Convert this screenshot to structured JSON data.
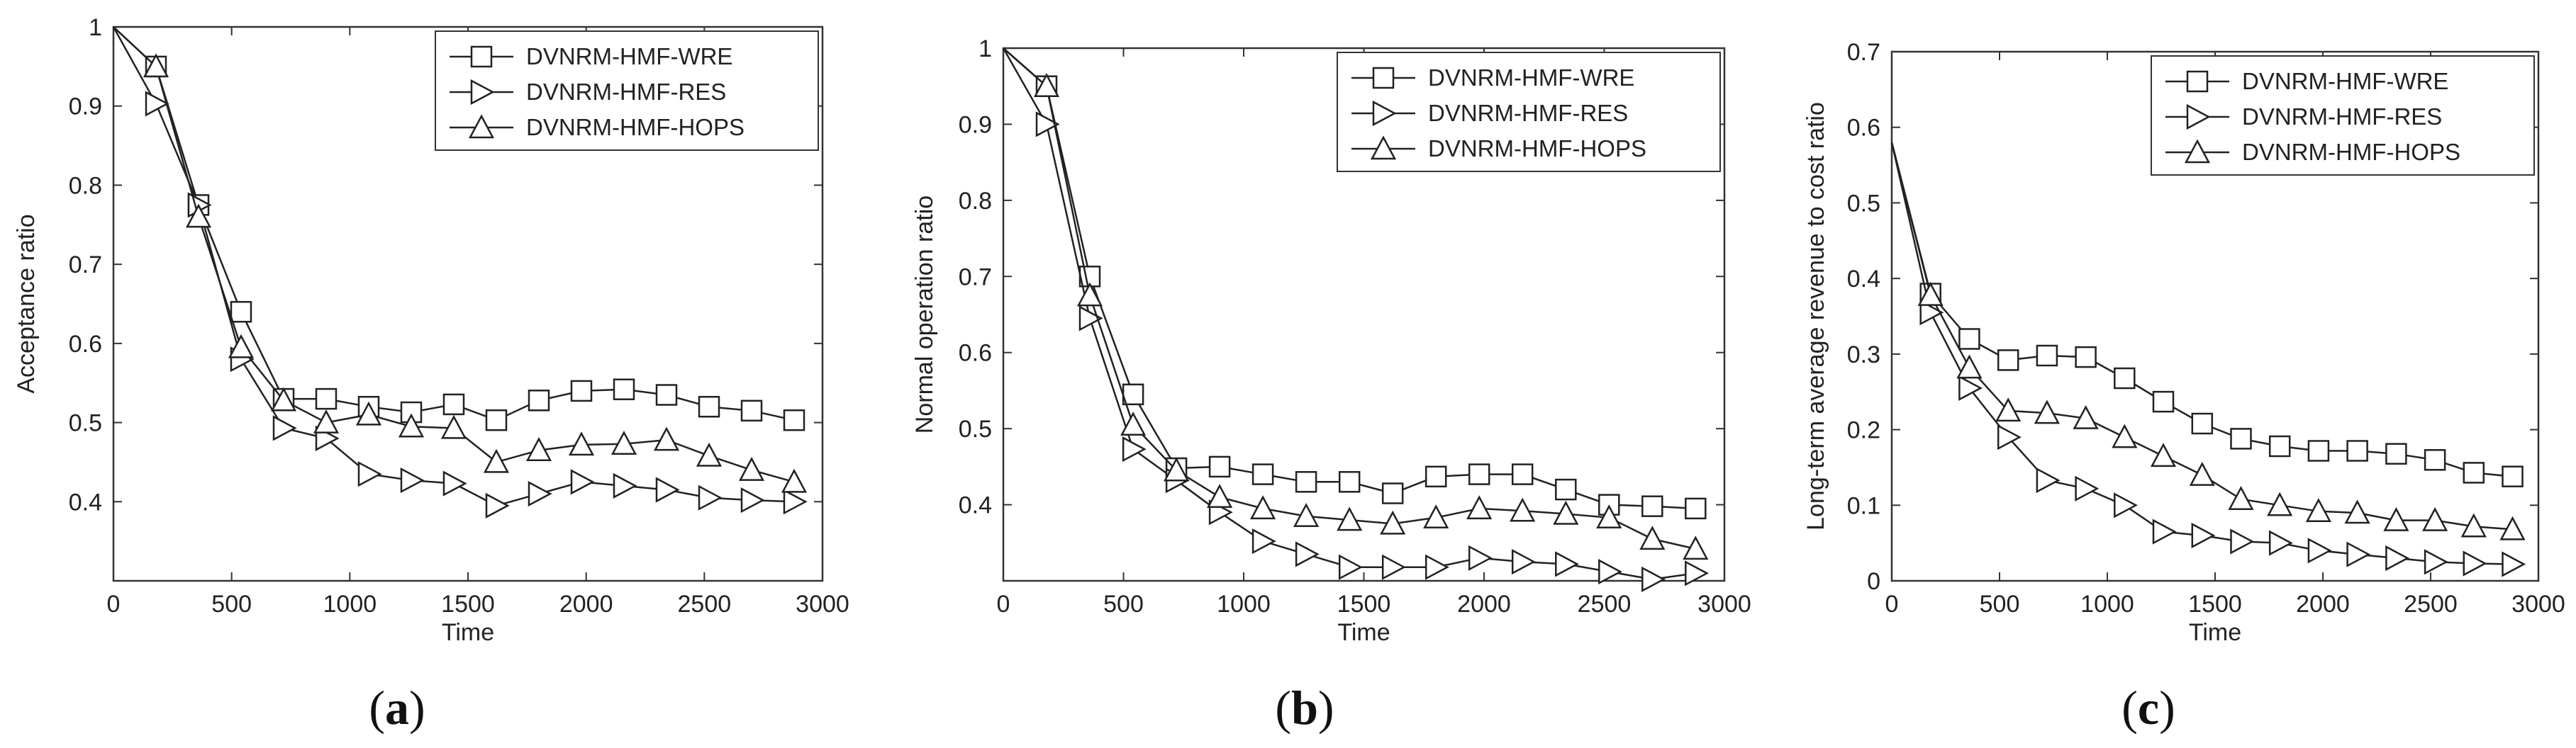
{
  "chart_data": [
    {
      "type": "line",
      "caption_letter": "a",
      "xlabel": "Time",
      "ylabel": "Acceptance ratio",
      "xlim": [
        0,
        3000
      ],
      "ylim": [
        0.3,
        1.0
      ],
      "xticks": [
        0,
        500,
        1000,
        1500,
        2000,
        2500,
        3000
      ],
      "xtick_labels": [
        "0",
        "500",
        "1000",
        "1500",
        "2000",
        "2500",
        "3000"
      ],
      "yticks": [
        0.4,
        0.5,
        0.6,
        0.7,
        0.8,
        0.9,
        1.0
      ],
      "ytick_labels": [
        "0.4",
        "0.5",
        "0.6",
        "0.7",
        "0.8",
        "0.9",
        "1"
      ],
      "legend_position": "top-right",
      "x": [
        0,
        180,
        360,
        540,
        720,
        900,
        1080,
        1260,
        1440,
        1620,
        1800,
        1980,
        2160,
        2340,
        2520,
        2700,
        2880
      ],
      "series": [
        {
          "name": "DVNRM-HMF-WRE",
          "marker": "square",
          "values": [
            1.0,
            0.95,
            0.775,
            0.64,
            0.53,
            0.53,
            0.52,
            0.513,
            0.523,
            0.503,
            0.528,
            0.54,
            0.542,
            0.535,
            0.52,
            0.515,
            0.503
          ]
        },
        {
          "name": "DVNRM-HMF-RES",
          "marker": "triangle-right",
          "values": [
            1.0,
            0.903,
            0.775,
            0.58,
            0.493,
            0.48,
            0.435,
            0.427,
            0.423,
            0.395,
            0.41,
            0.425,
            0.42,
            0.415,
            0.405,
            0.402,
            0.4
          ]
        },
        {
          "name": "DVNRM-HMF-HOPS",
          "marker": "triangle-up",
          "values": [
            1.0,
            0.95,
            0.76,
            0.595,
            0.528,
            0.5,
            0.51,
            0.495,
            0.493,
            0.45,
            0.465,
            0.472,
            0.473,
            0.478,
            0.458,
            0.44,
            0.425
          ]
        }
      ]
    },
    {
      "type": "line",
      "caption_letter": "b",
      "xlabel": "Time",
      "ylabel": "Normal operation ratio",
      "xlim": [
        0,
        3000
      ],
      "ylim": [
        0.3,
        1.0
      ],
      "xticks": [
        0,
        500,
        1000,
        1500,
        2000,
        2500,
        3000
      ],
      "xtick_labels": [
        "0",
        "500",
        "1000",
        "1500",
        "2000",
        "2500",
        "3000"
      ],
      "yticks": [
        0.4,
        0.5,
        0.6,
        0.7,
        0.8,
        0.9,
        1.0
      ],
      "ytick_labels": [
        "0.4",
        "0.5",
        "0.6",
        "0.7",
        "0.8",
        "0.9",
        "1"
      ],
      "legend_position": "top-right",
      "x": [
        0,
        180,
        360,
        540,
        720,
        900,
        1080,
        1260,
        1440,
        1620,
        1800,
        1980,
        2160,
        2340,
        2520,
        2700,
        2880
      ],
      "series": [
        {
          "name": "DVNRM-HMF-WRE",
          "marker": "square",
          "values": [
            1.0,
            0.95,
            0.7,
            0.545,
            0.448,
            0.45,
            0.44,
            0.43,
            0.43,
            0.415,
            0.437,
            0.44,
            0.44,
            0.42,
            0.4,
            0.398,
            0.395
          ]
        },
        {
          "name": "DVNRM-HMF-RES",
          "marker": "triangle-right",
          "values": [
            1.0,
            0.9,
            0.645,
            0.473,
            0.432,
            0.39,
            0.352,
            0.335,
            0.318,
            0.318,
            0.318,
            0.33,
            0.325,
            0.322,
            0.312,
            0.302,
            0.31
          ]
        },
        {
          "name": "DVNRM-HMF-HOPS",
          "marker": "triangle-up",
          "values": [
            1.0,
            0.95,
            0.675,
            0.505,
            0.445,
            0.41,
            0.395,
            0.385,
            0.38,
            0.375,
            0.383,
            0.395,
            0.392,
            0.388,
            0.383,
            0.355,
            0.342
          ]
        }
      ]
    },
    {
      "type": "line",
      "caption_letter": "c",
      "xlabel": "Time",
      "ylabel": "Long-term average revenue to cost ratio",
      "xlim": [
        0,
        3000
      ],
      "ylim": [
        0,
        0.7
      ],
      "xticks": [
        0,
        500,
        1000,
        1500,
        2000,
        2500,
        3000
      ],
      "xtick_labels": [
        "0",
        "500",
        "1000",
        "1500",
        "2000",
        "2500",
        "3000"
      ],
      "yticks": [
        0,
        0.1,
        0.2,
        0.3,
        0.4,
        0.5,
        0.6,
        0.7
      ],
      "ytick_labels": [
        "0",
        "0.1",
        "0.2",
        "0.3",
        "0.4",
        "0.5",
        "0.6",
        "0.7"
      ],
      "legend_position": "top-right",
      "x": [
        0,
        180,
        360,
        540,
        720,
        900,
        1080,
        1260,
        1440,
        1620,
        1800,
        1980,
        2160,
        2340,
        2520,
        2700,
        2880
      ],
      "series": [
        {
          "name": "DVNRM-HMF-WRE",
          "marker": "square",
          "values": [
            0.58,
            0.38,
            0.32,
            0.292,
            0.298,
            0.296,
            0.268,
            0.237,
            0.208,
            0.188,
            0.178,
            0.172,
            0.172,
            0.168,
            0.16,
            0.143,
            0.138
          ]
        },
        {
          "name": "DVNRM-HMF-RES",
          "marker": "triangle-right",
          "values": [
            0.58,
            0.355,
            0.255,
            0.19,
            0.133,
            0.122,
            0.1,
            0.065,
            0.06,
            0.052,
            0.05,
            0.04,
            0.035,
            0.03,
            0.025,
            0.023,
            0.022
          ]
        },
        {
          "name": "DVNRM-HMF-HOPS",
          "marker": "triangle-up",
          "values": [
            0.58,
            0.378,
            0.282,
            0.225,
            0.222,
            0.215,
            0.19,
            0.165,
            0.14,
            0.108,
            0.1,
            0.092,
            0.09,
            0.08,
            0.08,
            0.072,
            0.068
          ]
        }
      ]
    }
  ]
}
